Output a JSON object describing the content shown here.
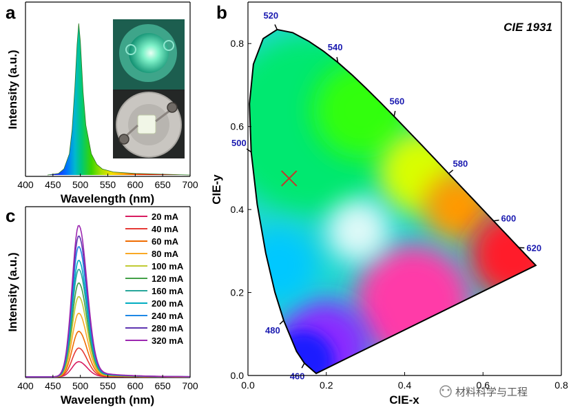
{
  "panels": {
    "a": {
      "letter": "a"
    },
    "b": {
      "letter": "b"
    },
    "c": {
      "letter": "c"
    }
  },
  "watermark": {
    "text": "材料科学与工程"
  },
  "chart_data": [
    {
      "id": "a",
      "type": "line",
      "title": "",
      "xlabel": "Wavelength (nm)",
      "ylabel": "Intensity (a.u.)",
      "xlim": [
        400,
        700
      ],
      "xticks": [
        400,
        450,
        500,
        550,
        600,
        650,
        700
      ],
      "xtick_labels": [
        "400",
        "450",
        "500",
        "550",
        "600",
        "650",
        "700"
      ],
      "grid": false,
      "peak_nm": 497,
      "fill": "spectrum-colored",
      "x": [
        440,
        460,
        470,
        480,
        485,
        490,
        494,
        497,
        500,
        505,
        510,
        520,
        530,
        540,
        560,
        600,
        650,
        700
      ],
      "y": [
        0.0,
        0.01,
        0.04,
        0.14,
        0.3,
        0.58,
        0.86,
        1.0,
        0.88,
        0.55,
        0.33,
        0.14,
        0.07,
        0.04,
        0.02,
        0.01,
        0.005,
        0.0
      ],
      "inset": "photo of the packaged green LED (lit, top; unlit, bottom)"
    },
    {
      "id": "c",
      "type": "line",
      "title": "",
      "xlabel": "Wavelength (nm)",
      "ylabel": "Intensity (a.u.)",
      "xlim": [
        400,
        700
      ],
      "ylim": [
        0,
        1.1
      ],
      "xticks": [
        400,
        450,
        500,
        550,
        600,
        650,
        700
      ],
      "xtick_labels": [
        "400",
        "450",
        "500",
        "550",
        "600",
        "650",
        "700"
      ],
      "grid": false,
      "legend": "top-right",
      "peak_nm": 497,
      "series": [
        {
          "name": "20 mA",
          "peak": 0.1,
          "color": "#d81b60"
        },
        {
          "name": "40 mA",
          "peak": 0.19,
          "color": "#e53935"
        },
        {
          "name": "60 mA",
          "peak": 0.3,
          "color": "#ef6c00"
        },
        {
          "name": "80 mA",
          "peak": 0.42,
          "color": "#f9a825"
        },
        {
          "name": "100 mA",
          "peak": 0.53,
          "color": "#c0ca33"
        },
        {
          "name": "120 mA",
          "peak": 0.62,
          "color": "#43a047"
        },
        {
          "name": "160 mA",
          "peak": 0.71,
          "color": "#26a69a"
        },
        {
          "name": "200 mA",
          "peak": 0.77,
          "color": "#00acc1"
        },
        {
          "name": "240 mA",
          "peak": 0.86,
          "color": "#1e88e5"
        },
        {
          "name": "280 mA",
          "peak": 0.93,
          "color": "#5e35b1"
        },
        {
          "name": "320 mA",
          "peak": 1.0,
          "color": "#9c27b0"
        }
      ]
    },
    {
      "id": "b",
      "type": "scatter",
      "title": "CIE 1931",
      "xlabel": "CIE-x",
      "ylabel": "CIE-y",
      "xlim": [
        0.0,
        0.8
      ],
      "ylim": [
        0.0,
        0.9
      ],
      "xticks": [
        0.0,
        0.2,
        0.4,
        0.6,
        0.8
      ],
      "xtick_labels": [
        "0.0",
        "0.2",
        "0.4",
        "0.6",
        "0.8"
      ],
      "yticks": [
        0.0,
        0.2,
        0.4,
        0.6,
        0.8
      ],
      "ytick_labels": [
        "0.0",
        "0.2",
        "0.4",
        "0.6",
        "0.8"
      ],
      "grid": false,
      "point": {
        "x": 0.105,
        "y": 0.475,
        "marker": "x",
        "color": "#c0392b"
      },
      "locus": [
        [
          0.1741,
          0.005
        ],
        [
          0.144,
          0.0297
        ],
        [
          0.1241,
          0.0578
        ],
        [
          0.0913,
          0.1327
        ],
        [
          0.0687,
          0.2007
        ],
        [
          0.0454,
          0.295
        ],
        [
          0.0235,
          0.4127
        ],
        [
          0.0082,
          0.5384
        ],
        [
          0.0039,
          0.6548
        ],
        [
          0.0139,
          0.7502
        ],
        [
          0.0389,
          0.812
        ],
        [
          0.0743,
          0.8338
        ],
        [
          0.1142,
          0.8262
        ],
        [
          0.1547,
          0.8059
        ],
        [
          0.1929,
          0.7816
        ],
        [
          0.2296,
          0.7543
        ],
        [
          0.2658,
          0.7243
        ],
        [
          0.3016,
          0.6923
        ],
        [
          0.3373,
          0.6589
        ],
        [
          0.3731,
          0.6245
        ],
        [
          0.4087,
          0.5896
        ],
        [
          0.4441,
          0.5547
        ],
        [
          0.4788,
          0.5202
        ],
        [
          0.5125,
          0.4866
        ],
        [
          0.5448,
          0.4544
        ],
        [
          0.5752,
          0.4242
        ],
        [
          0.6029,
          0.3965
        ],
        [
          0.627,
          0.3725
        ],
        [
          0.6482,
          0.3514
        ],
        [
          0.6658,
          0.334
        ],
        [
          0.6801,
          0.3197
        ],
        [
          0.6915,
          0.3083
        ],
        [
          0.7006,
          0.2993
        ],
        [
          0.7079,
          0.292
        ],
        [
          0.714,
          0.2859
        ],
        [
          0.719,
          0.2809
        ],
        [
          0.7347,
          0.2653
        ]
      ],
      "wavelength_labels": [
        {
          "nm": "460",
          "x": 0.144,
          "y": 0.0297
        },
        {
          "nm": "480",
          "x": 0.0913,
          "y": 0.1327
        },
        {
          "nm": "500",
          "x": 0.0082,
          "y": 0.5384
        },
        {
          "nm": "520",
          "x": 0.0743,
          "y": 0.8338
        },
        {
          "nm": "540",
          "x": 0.2296,
          "y": 0.7543
        },
        {
          "nm": "560",
          "x": 0.3731,
          "y": 0.6245
        },
        {
          "nm": "580",
          "x": 0.5125,
          "y": 0.4866
        },
        {
          "nm": "600",
          "x": 0.627,
          "y": 0.3725
        },
        {
          "nm": "620",
          "x": 0.6915,
          "y": 0.3083
        }
      ]
    }
  ]
}
